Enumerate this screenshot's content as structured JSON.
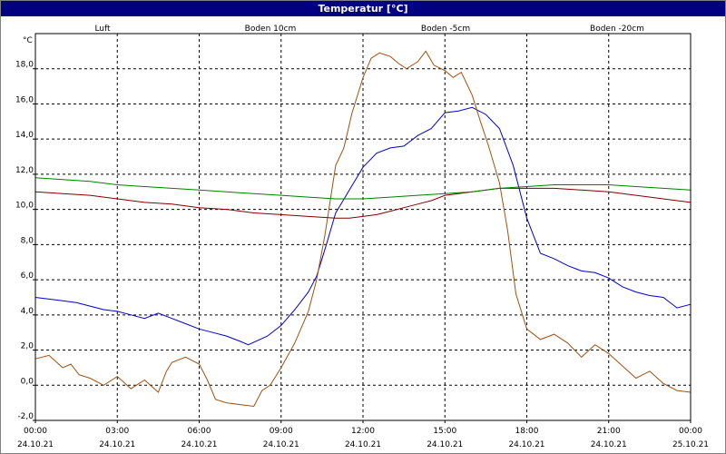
{
  "window": {
    "title": "Temperatur [°C]"
  },
  "chart_data": {
    "type": "line",
    "title": "Temperatur [°C]",
    "ylabel": "°C",
    "xlabel": "",
    "ylim": [
      -2.0,
      20.0
    ],
    "xlim": [
      0,
      24
    ],
    "grid": true,
    "legend_position": "top",
    "y_ticks": [
      {
        "value": -2.0,
        "label": "-2,0"
      },
      {
        "value": 0.0,
        "label": "0,0"
      },
      {
        "value": 2.0,
        "label": "2,0"
      },
      {
        "value": 4.0,
        "label": "4,0"
      },
      {
        "value": 6.0,
        "label": "6,0"
      },
      {
        "value": 8.0,
        "label": "8,0"
      },
      {
        "value": 10.0,
        "label": "10,0"
      },
      {
        "value": 12.0,
        "label": "12,0"
      },
      {
        "value": 14.0,
        "label": "14,0"
      },
      {
        "value": 16.0,
        "label": "16,0"
      },
      {
        "value": 18.0,
        "label": "18,0"
      }
    ],
    "x_ticks": [
      {
        "value": 0,
        "time": "00:00",
        "date": "24.10.21"
      },
      {
        "value": 3,
        "time": "03:00",
        "date": "24.10.21"
      },
      {
        "value": 6,
        "time": "06:00",
        "date": "24.10.21"
      },
      {
        "value": 9,
        "time": "09:00",
        "date": "24.10.21"
      },
      {
        "value": 12,
        "time": "12:00",
        "date": "24.10.21"
      },
      {
        "value": 15,
        "time": "15:00",
        "date": "24.10.21"
      },
      {
        "value": 18,
        "time": "18:00",
        "date": "24.10.21"
      },
      {
        "value": 21,
        "time": "21:00",
        "date": "24.10.21"
      },
      {
        "value": 24,
        "time": "00:00",
        "date": "25.10.21"
      }
    ],
    "series": [
      {
        "name": "Luft",
        "color": "#0000d0",
        "x": [
          0,
          0.5,
          1,
          1.5,
          2,
          2.5,
          3,
          3.5,
          4,
          4.5,
          5,
          5.5,
          6,
          6.5,
          7,
          7.5,
          7.8,
          8.5,
          9,
          9.5,
          10,
          10.3,
          10.6,
          11,
          11.5,
          12,
          12.5,
          13,
          13.5,
          14,
          14.5,
          15,
          15.5,
          16,
          16.5,
          17,
          17.5,
          18,
          18.5,
          19,
          19.5,
          20,
          20.5,
          21,
          21.5,
          22,
          22.5,
          23,
          23.5,
          24
        ],
        "values": [
          5.0,
          4.9,
          4.8,
          4.7,
          4.5,
          4.3,
          4.2,
          4.0,
          3.8,
          4.1,
          3.8,
          3.5,
          3.2,
          3.0,
          2.8,
          2.5,
          2.3,
          2.8,
          3.4,
          4.3,
          5.3,
          6.2,
          7.7,
          9.8,
          11.1,
          12.4,
          13.2,
          13.5,
          13.6,
          14.2,
          14.6,
          15.5,
          15.6,
          15.8,
          15.4,
          14.6,
          12.5,
          9.5,
          7.5,
          7.2,
          6.8,
          6.5,
          6.4,
          6.1,
          5.6,
          5.3,
          5.1,
          5.0,
          4.4,
          4.6
        ]
      },
      {
        "name": "Boden 10cm",
        "color": "#a05010",
        "x": [
          0,
          0.5,
          1,
          1.3,
          1.6,
          2,
          2.5,
          3,
          3.5,
          4,
          4.5,
          4.8,
          5,
          5.5,
          6,
          6.3,
          6.6,
          7,
          7.5,
          8,
          8.3,
          8.6,
          9,
          9.5,
          10,
          10.3,
          10.6,
          11,
          11.3,
          11.6,
          12,
          12.3,
          12.6,
          13,
          13.3,
          13.6,
          14,
          14.3,
          14.6,
          15,
          15.3,
          15.6,
          16,
          16.3,
          16.6,
          17,
          17.3,
          17.6,
          18,
          18.5,
          19,
          19.5,
          20,
          20.5,
          21,
          21.5,
          22,
          22.5,
          23,
          23.5,
          24
        ],
        "values": [
          1.5,
          1.7,
          1.0,
          1.2,
          0.6,
          0.4,
          0.0,
          0.5,
          -0.2,
          0.3,
          -0.4,
          0.8,
          1.3,
          1.6,
          1.2,
          0.3,
          -0.8,
          -1.0,
          -1.1,
          -1.2,
          -0.3,
          0.0,
          1.0,
          2.4,
          4.2,
          6.0,
          8.5,
          12.5,
          13.5,
          15.5,
          17.5,
          18.6,
          18.9,
          18.7,
          18.3,
          18.0,
          18.4,
          19.0,
          18.2,
          17.9,
          17.5,
          17.8,
          16.5,
          15.0,
          13.6,
          11.5,
          8.8,
          5.2,
          3.2,
          2.6,
          2.9,
          2.4,
          1.6,
          2.3,
          1.8,
          1.1,
          0.4,
          0.8,
          0.1,
          -0.3,
          -0.4
        ]
      },
      {
        "name": "Boden -5cm",
        "color": "#800000",
        "x": [
          0,
          1,
          2,
          3,
          4,
          5,
          6,
          7,
          8,
          9,
          10,
          11,
          11.5,
          12,
          12.5,
          13,
          13.5,
          14,
          14.5,
          15,
          15.5,
          16,
          17,
          18,
          18.5,
          19,
          20,
          21,
          22,
          23,
          24
        ],
        "values": [
          11.0,
          10.9,
          10.8,
          10.6,
          10.4,
          10.3,
          10.1,
          10.0,
          9.8,
          9.7,
          9.6,
          9.5,
          9.5,
          9.6,
          9.7,
          9.9,
          10.1,
          10.3,
          10.5,
          10.8,
          10.9,
          11.0,
          11.2,
          11.2,
          11.2,
          11.2,
          11.1,
          11.0,
          10.8,
          10.6,
          10.4
        ]
      },
      {
        "name": "Boden -20cm",
        "color": "#008000",
        "x": [
          0,
          1,
          2,
          3,
          4,
          5,
          6,
          7,
          8,
          9,
          10,
          11,
          12,
          13,
          14,
          15,
          16,
          17,
          18,
          19,
          20,
          21,
          22,
          23,
          24
        ],
        "values": [
          11.8,
          11.7,
          11.6,
          11.4,
          11.3,
          11.2,
          11.1,
          11.0,
          10.9,
          10.8,
          10.7,
          10.6,
          10.6,
          10.7,
          10.8,
          10.9,
          11.0,
          11.2,
          11.3,
          11.4,
          11.4,
          11.4,
          11.3,
          11.2,
          11.1
        ]
      }
    ]
  }
}
